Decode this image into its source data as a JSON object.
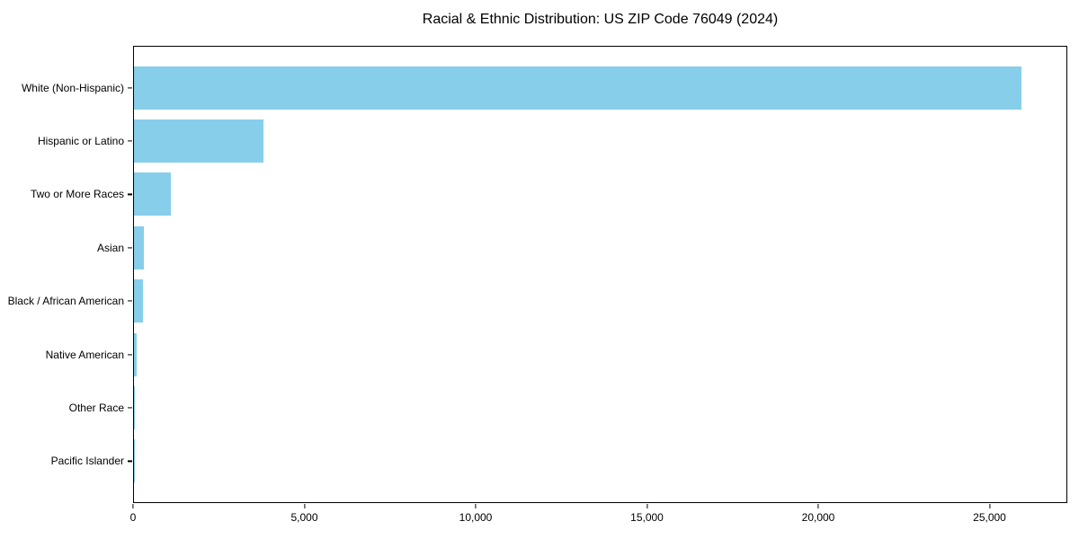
{
  "colors": {
    "bar": "#87CEEB",
    "axis": "#000000",
    "background": "#FFFFFF"
  },
  "chart_data": {
    "type": "bar",
    "orientation": "horizontal",
    "title": "Racial & Ethnic Distribution: US ZIP Code 76049 (2024)",
    "xlabel": "",
    "ylabel": "",
    "categories": [
      "White (Non-Hispanic)",
      "Hispanic or Latino",
      "Two or More Races",
      "Asian",
      "Black / African American",
      "Native American",
      "Other Race",
      "Pacific Islander"
    ],
    "values": [
      25950,
      3780,
      1080,
      280,
      260,
      70,
      25,
      5
    ],
    "xlim": [
      0,
      27270
    ],
    "xticks": [
      0,
      5000,
      10000,
      15000,
      20000,
      25000
    ],
    "xtick_labels": [
      "0",
      "5,000",
      "10,000",
      "15,000",
      "20,000",
      "25,000"
    ],
    "grid": false,
    "legend": "none",
    "bar_color": "#87CEEB"
  }
}
